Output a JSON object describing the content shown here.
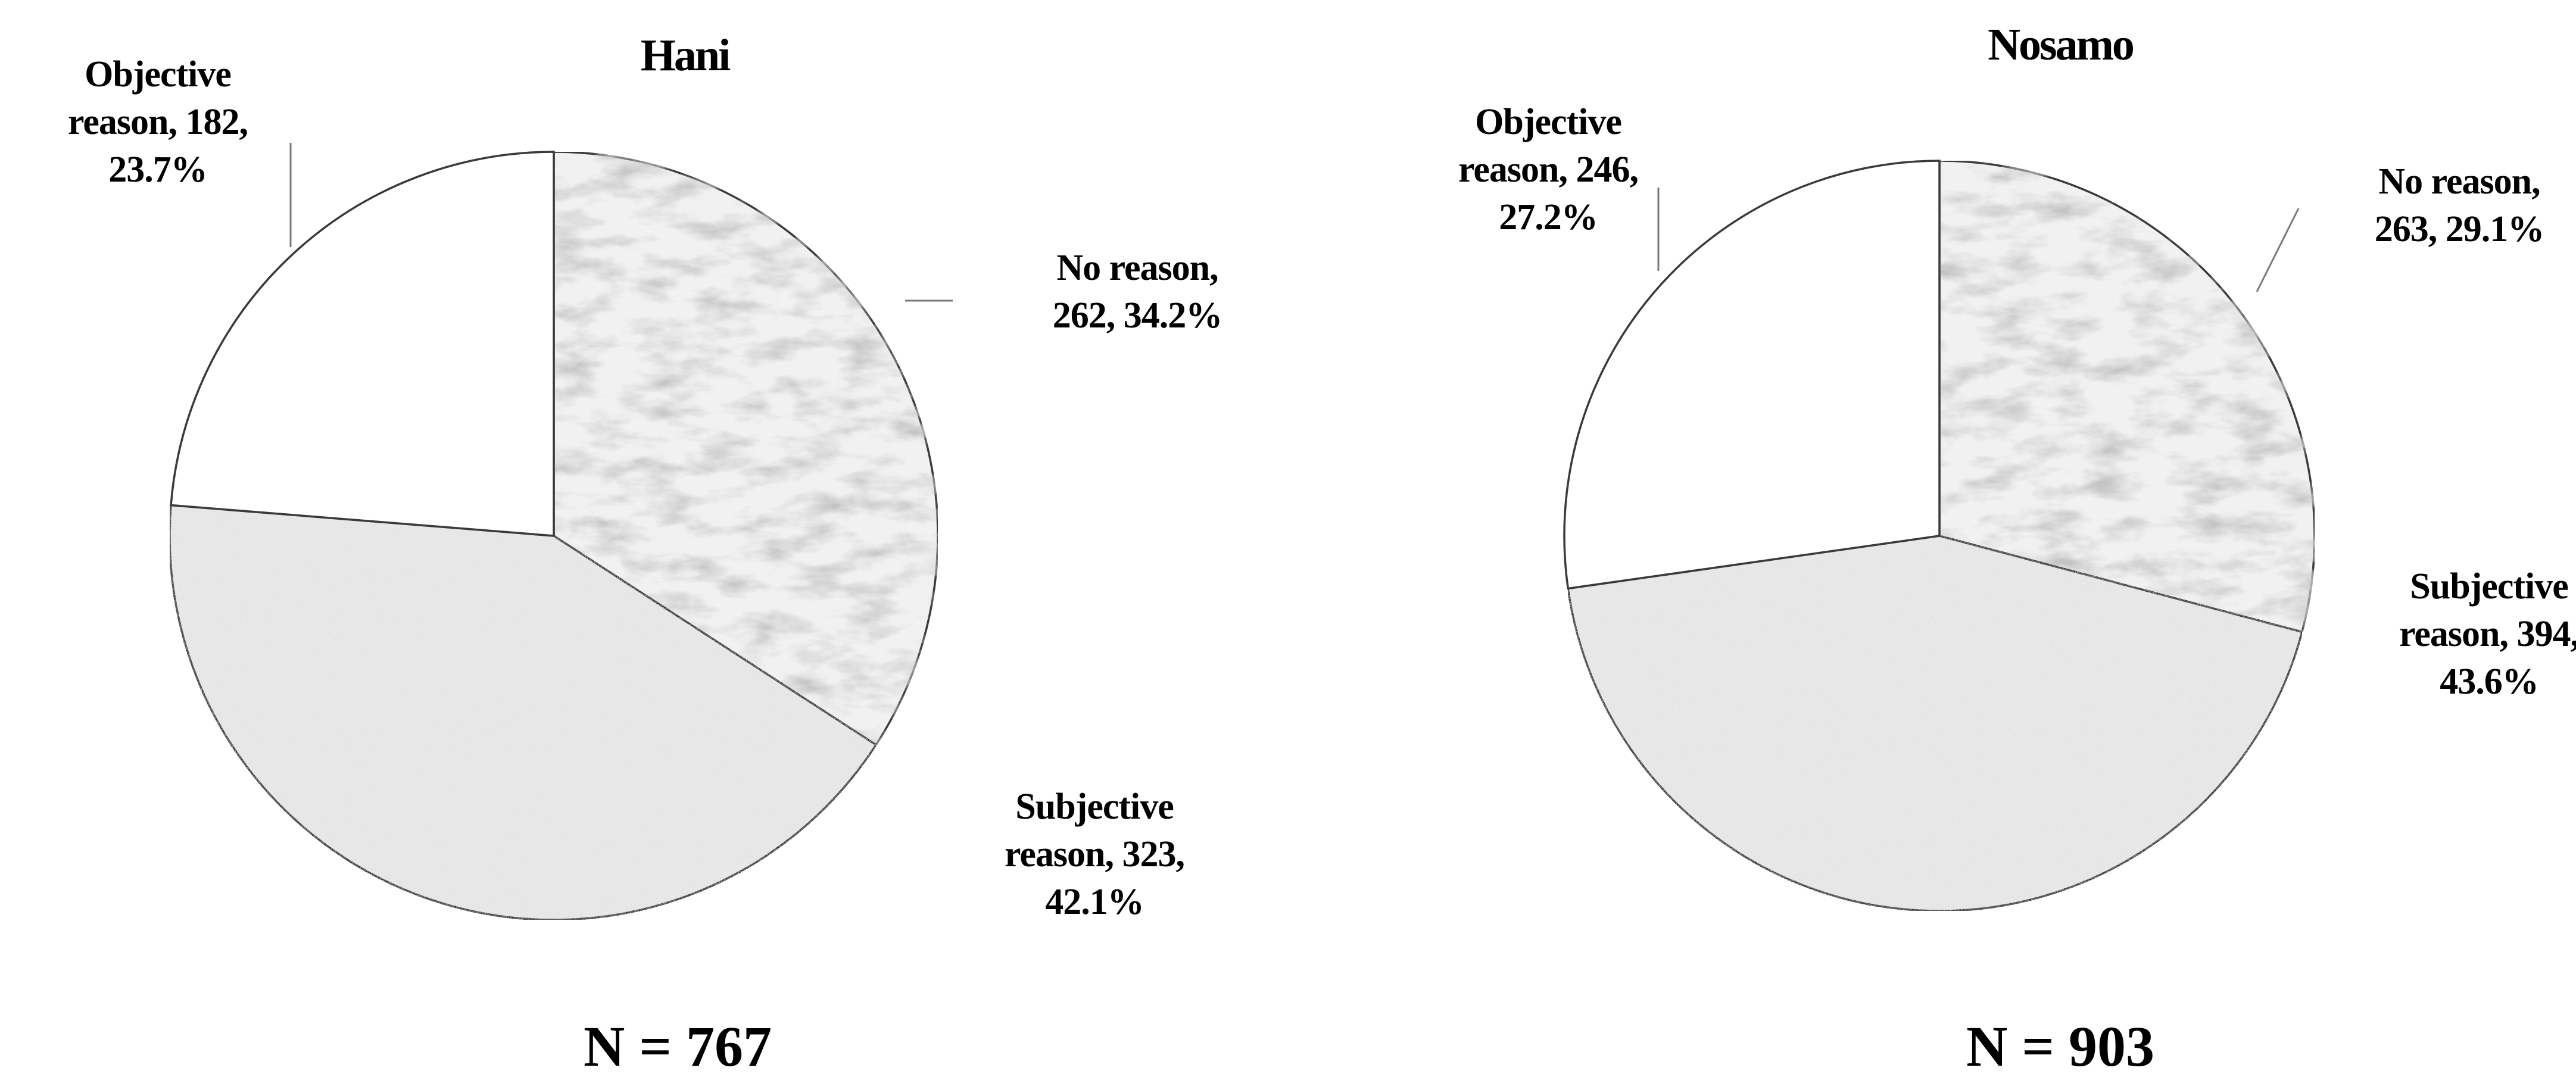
{
  "chart_data": [
    {
      "type": "pie",
      "title": "Hani",
      "n_label": "N = 767",
      "slices": [
        {
          "label_lines": [
            "No reason,",
            "262, 34.2%"
          ],
          "value": 262,
          "percent": 34.2,
          "color": "#f1f1f1"
        },
        {
          "label_lines": [
            "Subjective",
            "reason, 323,",
            "42.1%"
          ],
          "value": 323,
          "percent": 42.1,
          "color": "#e9e9e9"
        },
        {
          "label_lines": [
            "Objective",
            "reason, 182,",
            "23.7%"
          ],
          "value": 182,
          "percent": 23.7,
          "color": "#ffffff"
        }
      ]
    },
    {
      "type": "pie",
      "title": "Nosamo",
      "n_label": "N = 903",
      "slices": [
        {
          "label_lines": [
            "No reason,",
            "263, 29.1%"
          ],
          "value": 263,
          "percent": 29.1,
          "color": "#f1f1f1"
        },
        {
          "label_lines": [
            "Subjective",
            "reason, 394,",
            "43.6%"
          ],
          "value": 394,
          "percent": 43.6,
          "color": "#e9e9e9"
        },
        {
          "label_lines": [
            "Objective",
            "reason, 246,",
            "27.2%"
          ],
          "value": 246,
          "percent": 27.2,
          "color": "#ffffff"
        }
      ]
    }
  ]
}
